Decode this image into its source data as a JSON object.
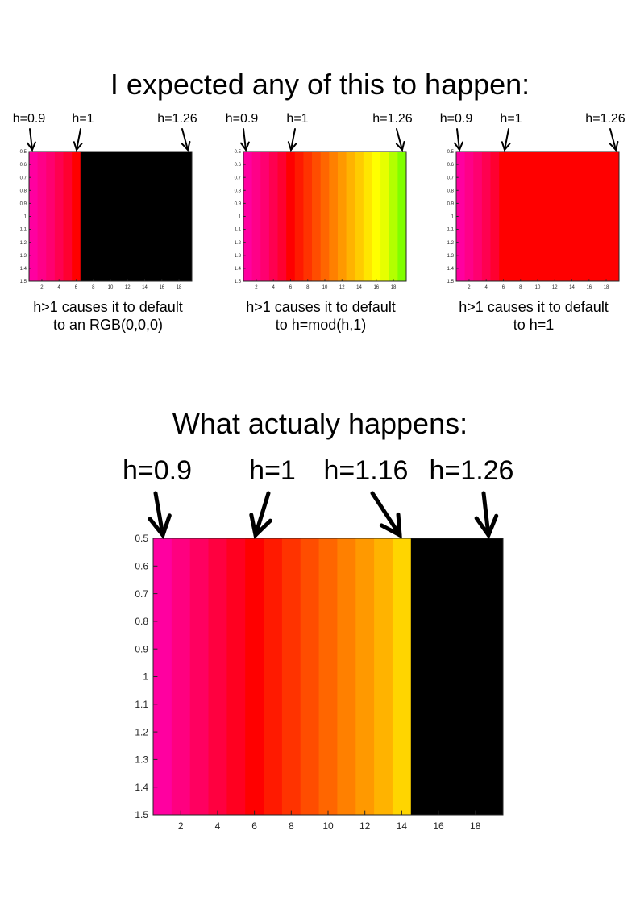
{
  "title_top": "I expected any of this to happen:",
  "title_bottom": "What actualy happens:",
  "colors": {
    "magenta": "#ff00a0",
    "red": "#ff0000",
    "black": "#000000",
    "yellow": "#ffff00",
    "green": "#80ff00"
  },
  "chart_data": [
    {
      "type": "heatmap",
      "title": "",
      "caption": [
        "h>1 causes it to default",
        "to an RGB(0,0,0)"
      ],
      "arrow_labels": [
        "h=0.9",
        "h=1",
        "h=1.26"
      ],
      "xlim": [
        0.5,
        19.5
      ],
      "ylim": [
        0.5,
        1.5
      ],
      "xticks": [
        "2",
        "4",
        "6",
        "8",
        "10",
        "12",
        "14",
        "16",
        "18"
      ],
      "yticks": [
        "0.5",
        "0.6",
        "0.7",
        "0.8",
        "0.9",
        "1",
        "1.1",
        "1.2",
        "1.3",
        "1.4",
        "1.5"
      ],
      "columns": [
        1,
        2,
        3,
        4,
        5,
        6,
        7,
        8,
        9,
        10,
        11,
        12,
        13,
        14,
        15,
        16,
        17,
        18,
        19
      ],
      "colors": [
        "#ff00a0",
        "#ff0088",
        "#ff0070",
        "#ff0050",
        "#ff0030",
        "#ff0000",
        "#000000",
        "#000000",
        "#000000",
        "#000000",
        "#000000",
        "#000000",
        "#000000",
        "#000000",
        "#000000",
        "#000000",
        "#000000",
        "#000000",
        "#000000"
      ]
    },
    {
      "type": "heatmap",
      "title": "",
      "caption": [
        "h>1 causes it to default",
        "to h=mod(h,1)"
      ],
      "arrow_labels": [
        "h=0.9",
        "h=1",
        "h=1.26"
      ],
      "xlim": [
        0.5,
        19.5
      ],
      "ylim": [
        0.5,
        1.5
      ],
      "xticks": [
        "2",
        "4",
        "6",
        "8",
        "10",
        "12",
        "14",
        "16",
        "18"
      ],
      "yticks": [
        "0.5",
        "0.6",
        "0.7",
        "0.8",
        "0.9",
        "1",
        "1.1",
        "1.2",
        "1.3",
        "1.4",
        "1.5"
      ],
      "columns": [
        1,
        2,
        3,
        4,
        5,
        6,
        7,
        8,
        9,
        10,
        11,
        12,
        13,
        14,
        15,
        16,
        17,
        18,
        19
      ],
      "colors": [
        "#ff00a0",
        "#ff0088",
        "#ff0070",
        "#ff0050",
        "#ff0030",
        "#ff0000",
        "#ff1a00",
        "#ff3300",
        "#ff4d00",
        "#ff6600",
        "#ff8000",
        "#ff9900",
        "#ffb300",
        "#ffcc00",
        "#ffe600",
        "#ffff00",
        "#e6ff00",
        "#b3ff00",
        "#80ff00"
      ]
    },
    {
      "type": "heatmap",
      "title": "",
      "caption": [
        "h>1 causes it to default",
        "to h=1"
      ],
      "arrow_labels": [
        "h=0.9",
        "h=1",
        "h=1.26"
      ],
      "xlim": [
        0.5,
        19.5
      ],
      "ylim": [
        0.5,
        1.5
      ],
      "xticks": [
        "2",
        "4",
        "6",
        "8",
        "10",
        "12",
        "14",
        "16",
        "18"
      ],
      "yticks": [
        "0.5",
        "0.6",
        "0.7",
        "0.8",
        "0.9",
        "1",
        "1.1",
        "1.2",
        "1.3",
        "1.4",
        "1.5"
      ],
      "columns": [
        1,
        2,
        3,
        4,
        5,
        6,
        7,
        8,
        9,
        10,
        11,
        12,
        13,
        14,
        15,
        16,
        17,
        18,
        19
      ],
      "colors": [
        "#ff00a0",
        "#ff0088",
        "#ff0070",
        "#ff0050",
        "#ff0030",
        "#ff0000",
        "#ff0000",
        "#ff0000",
        "#ff0000",
        "#ff0000",
        "#ff0000",
        "#ff0000",
        "#ff0000",
        "#ff0000",
        "#ff0000",
        "#ff0000",
        "#ff0000",
        "#ff0000",
        "#ff0000"
      ]
    },
    {
      "type": "heatmap",
      "title": "",
      "caption": [],
      "arrow_labels": [
        "h=0.9",
        "h=1",
        "h=1.16",
        "h=1.26"
      ],
      "xlim": [
        0.5,
        19.5
      ],
      "ylim": [
        0.5,
        1.5
      ],
      "xticks": [
        "2",
        "4",
        "6",
        "8",
        "10",
        "12",
        "14",
        "16",
        "18"
      ],
      "yticks": [
        "0.5",
        "0.6",
        "0.7",
        "0.8",
        "0.9",
        "1",
        "1.1",
        "1.2",
        "1.3",
        "1.4",
        "1.5"
      ],
      "columns": [
        1,
        2,
        3,
        4,
        5,
        6,
        7,
        8,
        9,
        10,
        11,
        12,
        13,
        14,
        15,
        16,
        17,
        18,
        19
      ],
      "colors": [
        "#ff00a0",
        "#ff0080",
        "#ff0060",
        "#ff0040",
        "#ff0020",
        "#ff0000",
        "#ff1a00",
        "#ff3300",
        "#ff4d00",
        "#ff6600",
        "#ff8000",
        "#ff9900",
        "#ffb300",
        "#ffd500",
        "#000000",
        "#000000",
        "#000000",
        "#000000",
        "#000000"
      ]
    }
  ]
}
